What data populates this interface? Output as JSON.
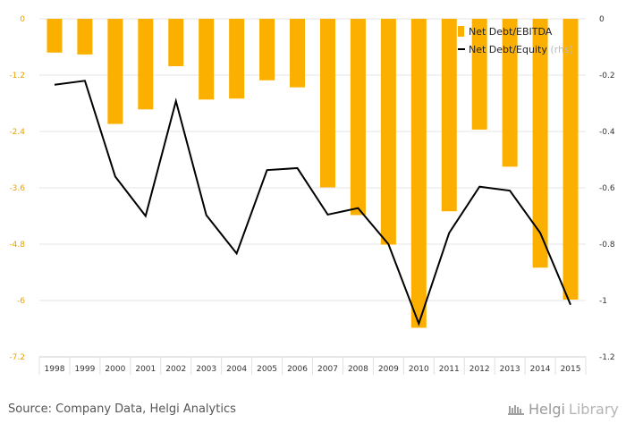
{
  "chart_data": {
    "type": "bar",
    "categories": [
      "1998",
      "1999",
      "2000",
      "2001",
      "2002",
      "2003",
      "2004",
      "2005",
      "2006",
      "2007",
      "2008",
      "2009",
      "2010",
      "2011",
      "2012",
      "2013",
      "2014",
      "2015"
    ],
    "series": [
      {
        "name": "Net Debt/EBITDA",
        "type": "bar",
        "axis": "left",
        "color": "#fbb000",
        "values": [
          -0.72,
          -0.76,
          -2.24,
          -1.93,
          -1.01,
          -1.72,
          -1.7,
          -1.31,
          -1.46,
          -3.59,
          -4.18,
          -4.81,
          -6.58,
          -4.1,
          -2.36,
          -3.15,
          -5.3,
          -5.98
        ]
      },
      {
        "name": "Net Debt/Equity",
        "type": "line",
        "axis": "right",
        "color": "#000000",
        "values": [
          -0.234,
          -0.22,
          -0.56,
          -0.7,
          -0.292,
          -0.697,
          -0.833,
          -0.537,
          -0.53,
          -0.695,
          -0.672,
          -0.8,
          -1.082,
          -0.76,
          -0.596,
          -0.61,
          -0.76,
          -1.015
        ]
      }
    ],
    "y_left": {
      "min": -7.2,
      "max": 0,
      "ticks": [
        "0",
        "-1.2",
        "-2.4",
        "-3.6",
        "-4.8",
        "-6",
        "-7.2"
      ],
      "color": "#e8a200"
    },
    "y_right": {
      "min": -1.2,
      "max": 0,
      "ticks": [
        "0",
        "-0.2",
        "-0.4",
        "-0.6",
        "-0.8",
        "-1",
        "-1.2"
      ]
    },
    "grid": true,
    "legend": {
      "position": "top-right",
      "items": [
        {
          "label": "Net Debt/EBITDA",
          "suffix": "",
          "marker": "square",
          "color": "#fbb000"
        },
        {
          "label": "Net Debt/Equity",
          "suffix": " (rhs)",
          "marker": "line",
          "color": "#000000"
        }
      ]
    }
  },
  "footer": {
    "source": "Source: Company Data, Helgi Analytics",
    "logo_bold": "Helgi",
    "logo_light": "Library"
  }
}
